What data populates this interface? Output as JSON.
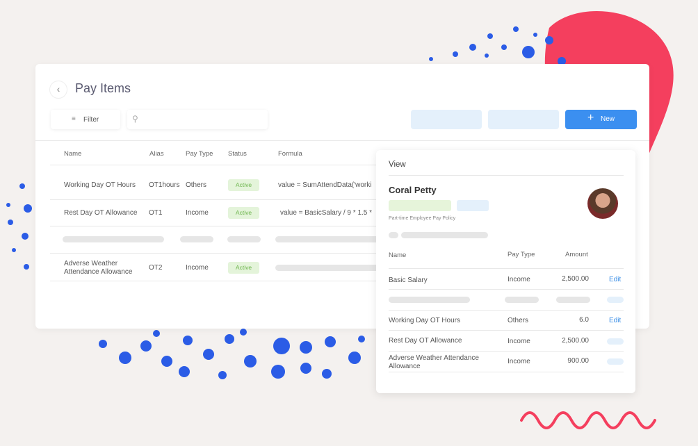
{
  "header": {
    "title": "Pay Items",
    "filter": "Filter",
    "new": "New"
  },
  "table": {
    "columns": [
      "Name",
      "Alias",
      "Pay Type",
      "Status",
      "Formula"
    ],
    "rows": [
      [
        "Working Day OT Hours",
        "OT1hours",
        "Others",
        "Active",
        "value = SumAttendData('worki"
      ],
      [
        "Rest Day OT Allowance",
        "OT1",
        "Income",
        "Active",
        "value =  BasicSalary / 9 * 1.5 *"
      ],
      [
        "Adverse Weather Attendance Allowance",
        "OT2",
        "Income",
        "Active"
      ]
    ]
  },
  "view": {
    "title": "View",
    "name": "Coral Petty",
    "policy": "Part-time Employee Pay Policy",
    "columns": [
      "Name",
      "Pay Type",
      "Amount"
    ],
    "rows": [
      [
        "Basic Salary",
        "Income",
        "2,500.00",
        "Edit"
      ],
      [
        "Working Day OT Hours",
        "Others",
        "6.0",
        "Edit"
      ],
      [
        "Rest Day OT Allowance",
        "Income",
        "2,500.00"
      ],
      [
        "Adverse Weather Attendance Allowance",
        "Income",
        "900.00"
      ]
    ]
  }
}
